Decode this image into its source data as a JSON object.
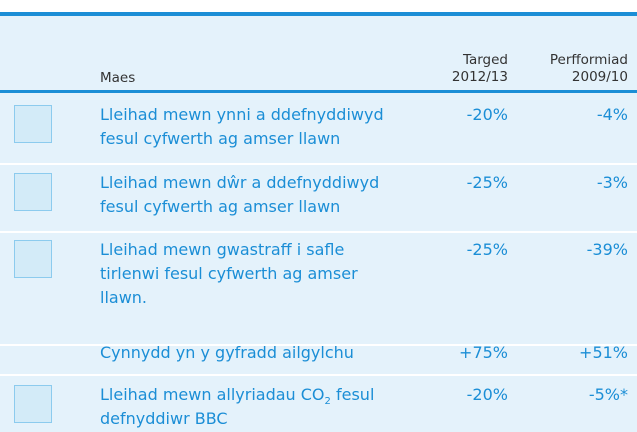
{
  "table": {
    "header": {
      "area": "Maes",
      "target": [
        "Targed",
        "2012/13"
      ],
      "performance": [
        "Perfformiad",
        "2009/10"
      ]
    },
    "rows": [
      {
        "icon": "bulb",
        "lines": [
          "Lleihad mewn ynni a ddefnyddiwyd",
          "fesul cyfwerth ag amser llawn"
        ],
        "target": "-20%",
        "performance": "-4%"
      },
      {
        "icon": "tap",
        "lines": [
          "Lleihad mewn dŵr a ddefnyddiwyd",
          "fesul cyfwerth ag amser llawn"
        ],
        "target": "-25%",
        "performance": "-3%"
      },
      {
        "icon": "bin",
        "lines": [
          "Lleihad mewn gwastraff i safle",
          "tirlenwi fesul cyfwerth ag amser",
          "llawn."
        ],
        "target": "-25%",
        "performance": "-39%"
      },
      {
        "lines": [
          "Cynnydd yn y gyfradd ailgylchu"
        ],
        "target": "+75%",
        "performance": "+51%"
      },
      {
        "icon": "bus",
        "lines": [
          {
            "text": "Lleihad mewn allyriadau CO",
            "sub": "2",
            "after": " fesul"
          },
          "defnyddiwr BBC"
        ],
        "target": "-20%",
        "performance": "-5%*"
      }
    ]
  }
}
